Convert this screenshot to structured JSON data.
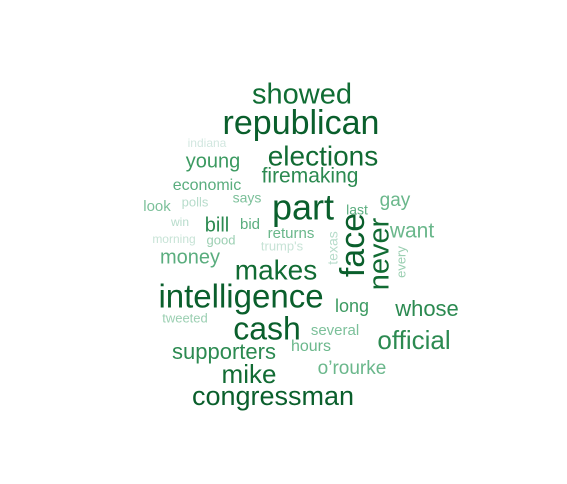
{
  "words": [
    {
      "text": "showed",
      "weight": 5,
      "color": "#106d34"
    },
    {
      "text": "republican",
      "weight": 9,
      "color": "#0a5f2c"
    },
    {
      "text": "elections",
      "weight": 8,
      "color": "#116b33"
    },
    {
      "text": "indiana",
      "weight": 1,
      "color": "#d2e7e0"
    },
    {
      "text": "young",
      "weight": 4,
      "color": "#3c9a61"
    },
    {
      "text": "firemaking",
      "weight": 4,
      "color": "#2c8a51"
    },
    {
      "text": "part",
      "weight": 10,
      "color": "#0a5f2c"
    },
    {
      "text": "economic",
      "weight": 3,
      "color": "#5aad7e"
    },
    {
      "text": "says",
      "weight": 2,
      "color": "#7cc09a"
    },
    {
      "text": "gay",
      "weight": 3,
      "color": "#6ab78b"
    },
    {
      "text": "look",
      "weight": 2,
      "color": "#7cc09a"
    },
    {
      "text": "polls",
      "weight": 1,
      "color": "#b7dccb"
    },
    {
      "text": "last",
      "weight": 2,
      "color": "#5aad7e"
    },
    {
      "text": "win",
      "weight": 1,
      "color": "#b7dccb"
    },
    {
      "text": "bill",
      "weight": 4,
      "color": "#2c8a51"
    },
    {
      "text": "bid",
      "weight": 2,
      "color": "#5aad7e"
    },
    {
      "text": "face",
      "weight": 8,
      "color": "#0a5f2c"
    },
    {
      "text": "want",
      "weight": 4,
      "color": "#6ab78b"
    },
    {
      "text": "morning",
      "weight": 1,
      "color": "#c7e3d6"
    },
    {
      "text": "good",
      "weight": 1,
      "color": "#9bcfb2"
    },
    {
      "text": "returns",
      "weight": 2,
      "color": "#6ab78b"
    },
    {
      "text": "trump's",
      "weight": 1,
      "color": "#c7e3d6"
    },
    {
      "text": "texas",
      "weight": 1,
      "color": "#b7dccb"
    },
    {
      "text": "never",
      "weight": 8,
      "color": "#116b33"
    },
    {
      "text": "every",
      "weight": 1,
      "color": "#9bcfb2"
    },
    {
      "text": "money",
      "weight": 4,
      "color": "#5aad7e"
    },
    {
      "text": "makes",
      "weight": 7,
      "color": "#116b33"
    },
    {
      "text": "intelligence",
      "weight": 9,
      "color": "#0a5f2c"
    },
    {
      "text": "long",
      "weight": 3,
      "color": "#3c9a61"
    },
    {
      "text": "whose",
      "weight": 4,
      "color": "#2c8a51"
    },
    {
      "text": "tweeted",
      "weight": 1,
      "color": "#9bcfb2"
    },
    {
      "text": "cash",
      "weight": 8,
      "color": "#0a5f2c"
    },
    {
      "text": "several",
      "weight": 2,
      "color": "#7cc09a"
    },
    {
      "text": "official",
      "weight": 5,
      "color": "#2c8a51"
    },
    {
      "text": "supporters",
      "weight": 5,
      "color": "#2c8a51"
    },
    {
      "text": "hours",
      "weight": 3,
      "color": "#6ab78b"
    },
    {
      "text": "o’rourke",
      "weight": 4,
      "color": "#6ab78b"
    },
    {
      "text": "mike",
      "weight": 6,
      "color": "#116b33"
    },
    {
      "text": "congressman",
      "weight": 7,
      "color": "#0a5f2c"
    }
  ]
}
